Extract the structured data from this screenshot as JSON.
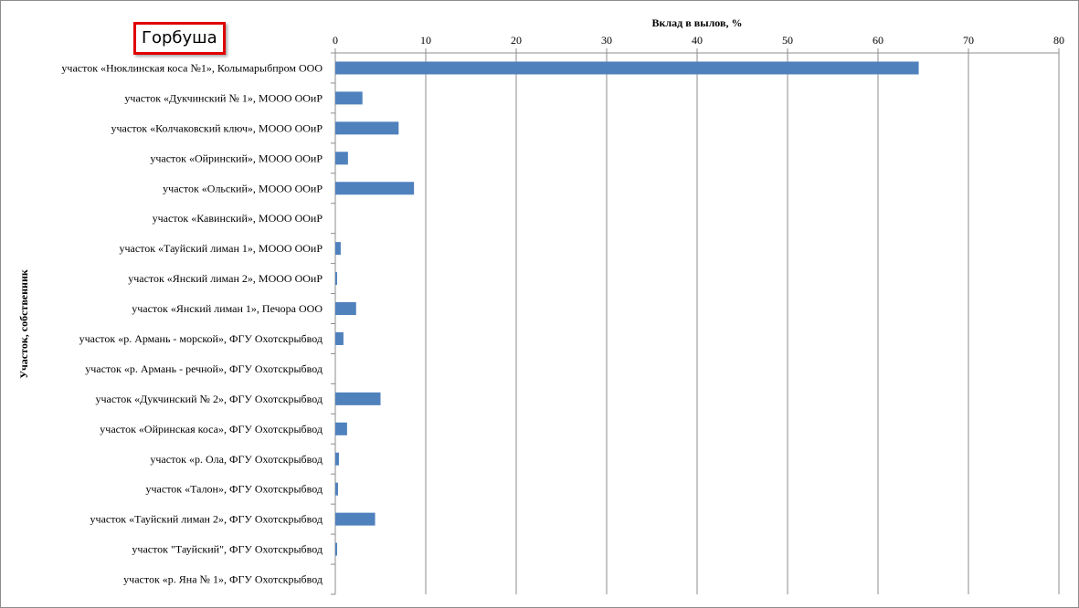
{
  "badge": {
    "label": "Горбуша"
  },
  "chart_data": {
    "type": "bar",
    "orientation": "horizontal",
    "title": "",
    "xlabel": "Вклад в вылов, %",
    "ylabel": "Участок, собственник",
    "xlim": [
      0,
      80
    ],
    "x_ticks": [
      0,
      10,
      20,
      30,
      40,
      50,
      60,
      70,
      80
    ],
    "x_axis_position": "top",
    "grid": "vertical",
    "legend": "none",
    "bar_color": "#4f81bd",
    "categories": [
      "участок «Нюклинская коса №1», Колымарыбпром ООО",
      "участок «Дукчинский № 1», МООО ООиР",
      "участок «Колчаковский ключ», МООО ООиР",
      "участок «Ойринский», МООО ООиР",
      "участок «Ольский», МООО ООиР",
      "участок «Кавинский», МООО ООиР",
      "участок «Тауйский лиман 1», МООО ООиР",
      "участок «Янский лиман 2», МООО ООиР",
      "участок «Янский лиман 1», Печора ООО",
      "участок «р. Армань - морской», ФГУ Охотскрыбвод",
      "участок «р. Армань - речной», ФГУ Охотскрыбвод",
      "участок «Дукчинский № 2», ФГУ Охотскрыбвод",
      "участок «Ойринская коса», ФГУ Охотскрыбвод",
      "участок «р. Ола, ФГУ Охотскрыбвод",
      "участок «Талон», ФГУ Охотскрыбвод",
      "участок «Тауйский лиман 2», ФГУ Охотскрыбвод",
      "участок \"Тауйский\", ФГУ Охотскрыбвод",
      "участок «р. Яна № 1», ФГУ Охотскрыбвод"
    ],
    "values": [
      64.5,
      3.0,
      7.0,
      1.4,
      8.7,
      0.0,
      0.6,
      0.2,
      2.3,
      0.9,
      0.0,
      5.0,
      1.3,
      0.4,
      0.3,
      4.4,
      0.2,
      0.0
    ]
  }
}
